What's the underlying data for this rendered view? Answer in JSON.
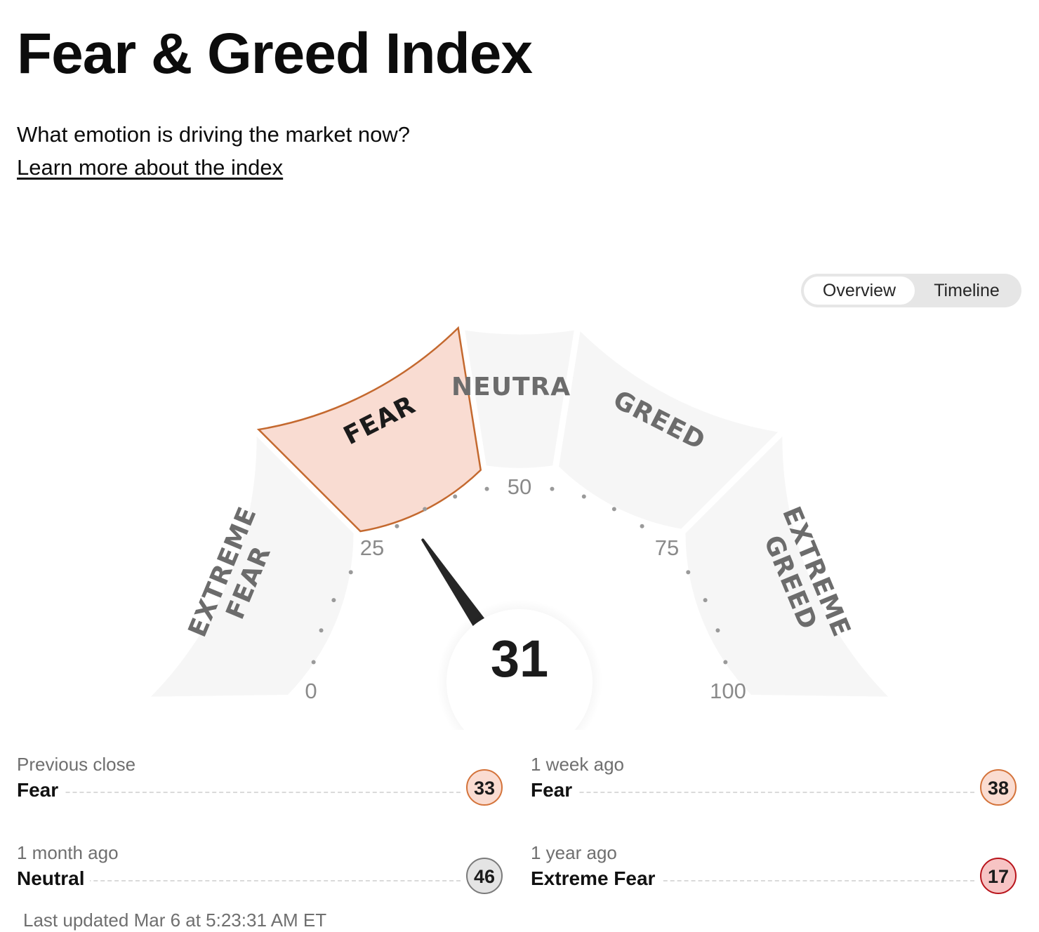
{
  "header": {
    "title": "Fear & Greed Index",
    "subtitle": "What emotion is driving the market now?",
    "learn_more": "Learn more about the index"
  },
  "view_toggle": {
    "options": [
      "Overview",
      "Timeline"
    ],
    "selected": "Overview"
  },
  "gauge": {
    "score": 31,
    "min": 0,
    "max": 100,
    "tick_labels": [
      "0",
      "25",
      "50",
      "75",
      "100"
    ],
    "zones": [
      {
        "lines": [
          "EXTREME",
          "FEAR"
        ],
        "from": 0,
        "to": 25
      },
      {
        "lines": [
          "FEAR"
        ],
        "from": 25,
        "to": 45
      },
      {
        "lines": [
          "NEUTRAL"
        ],
        "from": 45,
        "to": 55
      },
      {
        "lines": [
          "GREED"
        ],
        "from": 55,
        "to": 75
      },
      {
        "lines": [
          "EXTREME",
          "GREED"
        ],
        "from": 75,
        "to": 100
      }
    ],
    "active_zone": "FEAR",
    "colors": {
      "zone_fill": "#f6f6f6",
      "active_fill": "#f9dcd2",
      "active_stroke": "#c4692f",
      "needle": "#262626"
    }
  },
  "history": [
    {
      "label": "Previous close",
      "rating": "Fear",
      "value": "33",
      "bubble_bg": "#fadcd1",
      "bubble_border": "#d4733a"
    },
    {
      "label": "1 week ago",
      "rating": "Fear",
      "value": "38",
      "bubble_bg": "#fadcd1",
      "bubble_border": "#d4733a"
    },
    {
      "label": "1 month ago",
      "rating": "Neutral",
      "value": "46",
      "bubble_bg": "#e4e4e4",
      "bubble_border": "#7a7a7a"
    },
    {
      "label": "1 year ago",
      "rating": "Extreme Fear",
      "value": "17",
      "bubble_bg": "#f7c4c4",
      "bubble_border": "#b8141b"
    }
  ],
  "last_updated": "Last updated Mar 6 at 5:23:31 AM ET"
}
